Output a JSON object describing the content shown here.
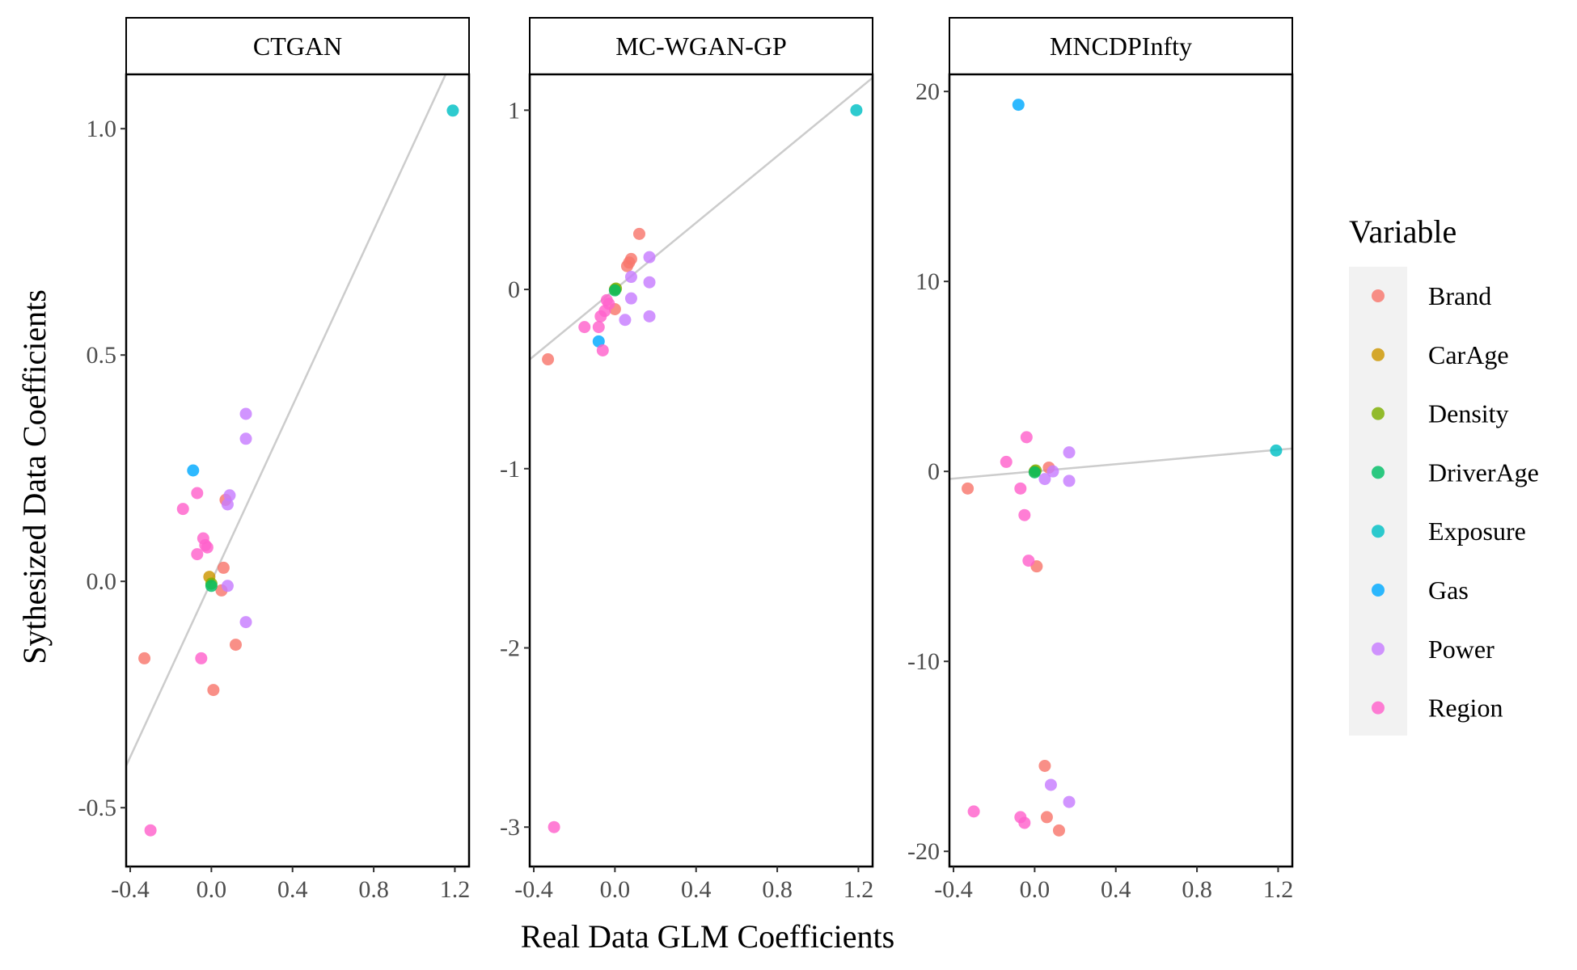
{
  "chart_data": {
    "type": "scatter",
    "xlabel": "Real Data GLM Coefficients",
    "ylabel": "Sythesized Data Coefficients",
    "xlim": [
      -0.42,
      1.27
    ],
    "x_ticks": [
      -0.4,
      0.0,
      0.4,
      0.8,
      1.2
    ],
    "x_tick_labels": [
      "-0.4",
      "0.0",
      "0.4",
      "0.8",
      "1.2"
    ],
    "legend": {
      "title": "Variable",
      "position": "right",
      "entries": [
        {
          "name": "Brand",
          "color": "#F8766D"
        },
        {
          "name": "CarAge",
          "color": "#CD9600"
        },
        {
          "name": "Density",
          "color": "#7CAE00"
        },
        {
          "name": "DriverAge",
          "color": "#00BE67"
        },
        {
          "name": "Exposure",
          "color": "#00BFC4"
        },
        {
          "name": "Gas",
          "color": "#00A9FF"
        },
        {
          "name": "Power",
          "color": "#C77CFF"
        },
        {
          "name": "Region",
          "color": "#FF61CC"
        }
      ]
    },
    "panels": [
      {
        "title": "CTGAN",
        "ylim": [
          -0.63,
          1.12
        ],
        "y_ticks": [
          -0.5,
          0.0,
          0.5,
          1.0
        ],
        "y_tick_labels": [
          "-0.5",
          "0.0",
          "0.5",
          "1.0"
        ],
        "fit_line": {
          "intercept": 0.0,
          "slope": 0.97
        },
        "points": [
          {
            "variable": "Exposure",
            "x": 1.19,
            "y": 1.04
          },
          {
            "variable": "Brand",
            "x": -0.33,
            "y": -0.17
          },
          {
            "variable": "Brand",
            "x": 0.06,
            "y": 0.03
          },
          {
            "variable": "Brand",
            "x": 0.07,
            "y": 0.18
          },
          {
            "variable": "Brand",
            "x": 0.05,
            "y": -0.02
          },
          {
            "variable": "Brand",
            "x": 0.12,
            "y": -0.14
          },
          {
            "variable": "Brand",
            "x": 0.01,
            "y": -0.24
          },
          {
            "variable": "CarAge",
            "x": -0.01,
            "y": 0.01
          },
          {
            "variable": "Density",
            "x": 0.0,
            "y": -0.005
          },
          {
            "variable": "DriverAge",
            "x": 0.0,
            "y": -0.01
          },
          {
            "variable": "Gas",
            "x": -0.09,
            "y": 0.245
          },
          {
            "variable": "Power",
            "x": 0.17,
            "y": 0.37
          },
          {
            "variable": "Power",
            "x": 0.17,
            "y": 0.315
          },
          {
            "variable": "Power",
            "x": 0.09,
            "y": 0.19
          },
          {
            "variable": "Power",
            "x": 0.08,
            "y": 0.17
          },
          {
            "variable": "Power",
            "x": 0.08,
            "y": -0.01
          },
          {
            "variable": "Power",
            "x": 0.17,
            "y": -0.09
          },
          {
            "variable": "Region",
            "x": -0.07,
            "y": 0.195
          },
          {
            "variable": "Region",
            "x": -0.14,
            "y": 0.16
          },
          {
            "variable": "Region",
            "x": -0.04,
            "y": 0.095
          },
          {
            "variable": "Region",
            "x": -0.03,
            "y": 0.08
          },
          {
            "variable": "Region",
            "x": -0.02,
            "y": 0.075
          },
          {
            "variable": "Region",
            "x": -0.07,
            "y": 0.06
          },
          {
            "variable": "Region",
            "x": -0.05,
            "y": -0.17
          },
          {
            "variable": "Region",
            "x": -0.3,
            "y": -0.55
          }
        ]
      },
      {
        "title": "MC-WGAN-GP",
        "ylim": [
          -3.22,
          1.2
        ],
        "y_ticks": [
          -3,
          -2,
          -1,
          0,
          1
        ],
        "y_tick_labels": [
          "-3",
          "-2",
          "-1",
          "0",
          "1"
        ],
        "fit_line": {
          "intercept": 0.0,
          "slope": 0.93
        },
        "points": [
          {
            "variable": "Exposure",
            "x": 1.19,
            "y": 1.0
          },
          {
            "variable": "Brand",
            "x": -0.33,
            "y": -0.39
          },
          {
            "variable": "Brand",
            "x": 0.12,
            "y": 0.31
          },
          {
            "variable": "Brand",
            "x": 0.08,
            "y": 0.17
          },
          {
            "variable": "Brand",
            "x": 0.07,
            "y": 0.15
          },
          {
            "variable": "Brand",
            "x": 0.06,
            "y": 0.13
          },
          {
            "variable": "Brand",
            "x": 0.0,
            "y": -0.11
          },
          {
            "variable": "CarAge",
            "x": 0.0,
            "y": 0.0
          },
          {
            "variable": "Density",
            "x": 0.005,
            "y": 0.005
          },
          {
            "variable": "DriverAge",
            "x": 0.0,
            "y": -0.005
          },
          {
            "variable": "Gas",
            "x": -0.08,
            "y": -0.29
          },
          {
            "variable": "Power",
            "x": 0.17,
            "y": 0.18
          },
          {
            "variable": "Power",
            "x": 0.08,
            "y": 0.07
          },
          {
            "variable": "Power",
            "x": 0.17,
            "y": 0.04
          },
          {
            "variable": "Power",
            "x": 0.08,
            "y": -0.05
          },
          {
            "variable": "Power",
            "x": 0.05,
            "y": -0.17
          },
          {
            "variable": "Power",
            "x": 0.17,
            "y": -0.15
          },
          {
            "variable": "Region",
            "x": -0.04,
            "y": -0.06
          },
          {
            "variable": "Region",
            "x": -0.03,
            "y": -0.08
          },
          {
            "variable": "Region",
            "x": -0.05,
            "y": -0.12
          },
          {
            "variable": "Region",
            "x": -0.07,
            "y": -0.15
          },
          {
            "variable": "Region",
            "x": -0.15,
            "y": -0.21
          },
          {
            "variable": "Region",
            "x": -0.08,
            "y": -0.21
          },
          {
            "variable": "Region",
            "x": -0.06,
            "y": -0.34
          },
          {
            "variable": "Region",
            "x": -0.3,
            "y": -3.0
          }
        ]
      },
      {
        "title": "MNCDPInfty",
        "ylim": [
          -20.8,
          20.9
        ],
        "y_ticks": [
          -20,
          -10,
          0,
          10,
          20
        ],
        "y_tick_labels": [
          "-20",
          "-10",
          "0",
          "10",
          "20"
        ],
        "fit_line": {
          "intercept": 0.0,
          "slope": 0.95
        },
        "points": [
          {
            "variable": "Exposure",
            "x": 1.19,
            "y": 1.1
          },
          {
            "variable": "Gas",
            "x": -0.08,
            "y": 19.3
          },
          {
            "variable": "Brand",
            "x": -0.33,
            "y": -0.9
          },
          {
            "variable": "Brand",
            "x": 0.07,
            "y": 0.2
          },
          {
            "variable": "Brand",
            "x": 0.01,
            "y": -5.0
          },
          {
            "variable": "Brand",
            "x": 0.05,
            "y": -15.5
          },
          {
            "variable": "Brand",
            "x": 0.06,
            "y": -18.2
          },
          {
            "variable": "Brand",
            "x": 0.12,
            "y": -18.9
          },
          {
            "variable": "CarAge",
            "x": 0.0,
            "y": 0.0
          },
          {
            "variable": "Density",
            "x": 0.005,
            "y": 0.05
          },
          {
            "variable": "DriverAge",
            "x": 0.0,
            "y": -0.05
          },
          {
            "variable": "Power",
            "x": 0.17,
            "y": 1.0
          },
          {
            "variable": "Power",
            "x": 0.09,
            "y": 0.0
          },
          {
            "variable": "Power",
            "x": 0.05,
            "y": -0.4
          },
          {
            "variable": "Power",
            "x": 0.17,
            "y": -0.5
          },
          {
            "variable": "Power",
            "x": 0.08,
            "y": -16.5
          },
          {
            "variable": "Power",
            "x": 0.17,
            "y": -17.4
          },
          {
            "variable": "Region",
            "x": -0.04,
            "y": 1.8
          },
          {
            "variable": "Region",
            "x": -0.14,
            "y": 0.5
          },
          {
            "variable": "Region",
            "x": -0.07,
            "y": -0.9
          },
          {
            "variable": "Region",
            "x": -0.05,
            "y": -2.3
          },
          {
            "variable": "Region",
            "x": -0.03,
            "y": -4.7
          },
          {
            "variable": "Region",
            "x": -0.3,
            "y": -17.9
          },
          {
            "variable": "Region",
            "x": -0.07,
            "y": -18.2
          },
          {
            "variable": "Region",
            "x": -0.05,
            "y": -18.5
          }
        ]
      }
    ]
  }
}
